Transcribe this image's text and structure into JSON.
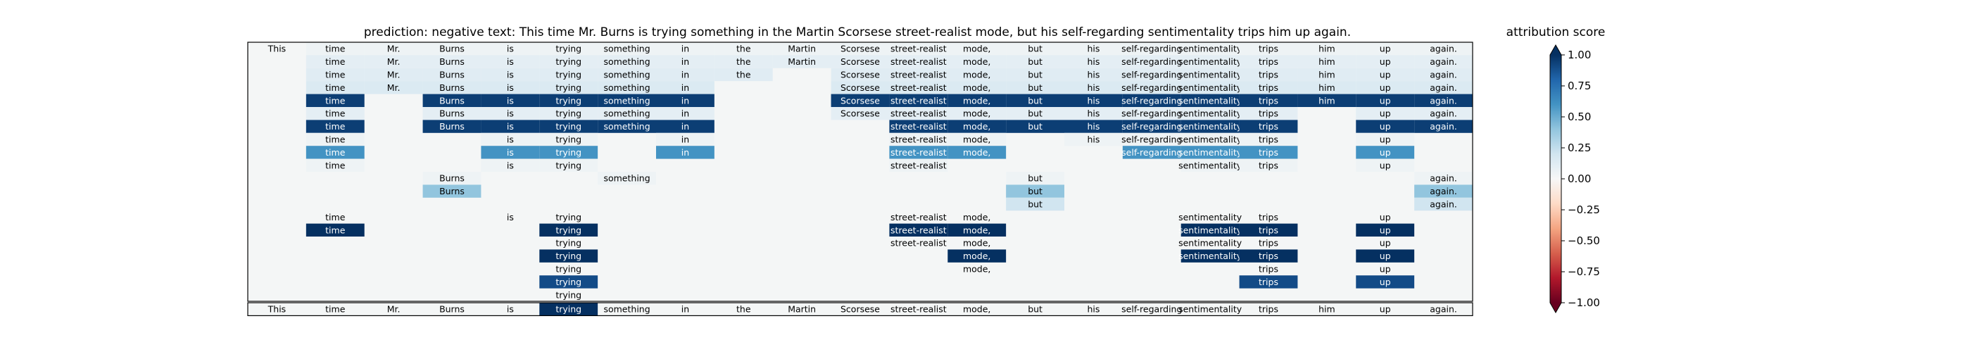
{
  "chart_data": {
    "type": "heatmap",
    "title": "prediction:  negative     text:  This time Mr. Burns is trying something in the Martin Scorsese street-realist mode, but his self-regarding sentimentality trips him up again.",
    "tokens": [
      "This",
      "time",
      "Mr.",
      "Burns",
      "is",
      "trying",
      "something",
      "in",
      "the",
      "Martin",
      "Scorsese",
      "street-realist",
      "mode,",
      "but",
      "his",
      "self-regarding",
      "sentimentality",
      "trips",
      "him",
      "up",
      "again."
    ],
    "rows": [
      [
        0.0,
        0.05,
        0.05,
        0.05,
        0.05,
        0.05,
        0.05,
        0.05,
        0.05,
        0.05,
        0.05,
        0.05,
        0.05,
        0.05,
        0.05,
        0.05,
        0.05,
        0.05,
        0.05,
        0.05,
        0.05
      ],
      [
        null,
        0.1,
        0.1,
        0.1,
        0.1,
        0.1,
        0.1,
        0.1,
        0.1,
        0.1,
        0.1,
        0.1,
        0.1,
        0.1,
        0.1,
        0.1,
        0.1,
        0.1,
        0.1,
        0.1,
        0.1
      ],
      [
        null,
        0.12,
        0.12,
        0.12,
        0.12,
        0.12,
        0.12,
        0.12,
        0.12,
        null,
        0.12,
        0.12,
        0.12,
        0.12,
        0.12,
        0.12,
        0.12,
        0.12,
        0.12,
        0.12,
        0.12
      ],
      [
        null,
        0.15,
        0.15,
        0.15,
        0.15,
        0.15,
        0.15,
        0.15,
        null,
        null,
        0.15,
        0.15,
        0.15,
        0.15,
        0.15,
        0.15,
        0.15,
        0.15,
        0.15,
        0.15,
        0.15
      ],
      [
        null,
        0.95,
        null,
        0.95,
        0.95,
        0.95,
        0.95,
        0.95,
        null,
        null,
        0.95,
        0.95,
        0.95,
        0.95,
        0.95,
        0.95,
        0.95,
        0.95,
        0.95,
        0.95,
        0.95
      ],
      [
        null,
        0.1,
        null,
        0.1,
        0.1,
        0.1,
        0.1,
        0.1,
        null,
        null,
        0.1,
        0.1,
        0.1,
        0.1,
        0.1,
        0.1,
        0.1,
        0.1,
        null,
        0.1,
        0.1
      ],
      [
        null,
        0.95,
        null,
        0.95,
        0.95,
        0.95,
        0.95,
        0.95,
        null,
        null,
        null,
        0.95,
        0.95,
        0.95,
        0.95,
        0.95,
        0.95,
        0.95,
        null,
        0.95,
        0.95
      ],
      [
        null,
        0.05,
        null,
        null,
        0.05,
        0.05,
        null,
        0.05,
        null,
        null,
        null,
        0.05,
        0.05,
        null,
        0.05,
        0.05,
        0.05,
        0.05,
        null,
        0.05,
        null
      ],
      [
        null,
        0.6,
        null,
        null,
        0.6,
        0.6,
        null,
        0.6,
        null,
        null,
        null,
        0.6,
        0.6,
        null,
        null,
        0.6,
        0.6,
        0.6,
        null,
        0.6,
        null
      ],
      [
        null,
        0.05,
        null,
        null,
        0.05,
        0.05,
        null,
        null,
        null,
        null,
        null,
        0.05,
        null,
        null,
        null,
        null,
        0.05,
        0.05,
        null,
        0.05,
        null
      ],
      [
        null,
        null,
        null,
        0.05,
        null,
        null,
        0.05,
        null,
        null,
        null,
        null,
        null,
        null,
        0.05,
        null,
        null,
        null,
        null,
        null,
        null,
        0.05
      ],
      [
        null,
        null,
        null,
        0.4,
        null,
        null,
        null,
        null,
        null,
        null,
        null,
        null,
        null,
        0.4,
        null,
        null,
        null,
        null,
        null,
        null,
        0.4
      ],
      [
        null,
        null,
        null,
        null,
        null,
        null,
        null,
        null,
        null,
        null,
        null,
        null,
        null,
        0.2,
        null,
        null,
        null,
        null,
        null,
        null,
        0.2
      ],
      [
        null,
        0.0,
        null,
        null,
        0.0,
        0.0,
        null,
        null,
        null,
        null,
        null,
        0.0,
        0.0,
        null,
        null,
        null,
        0.0,
        0.0,
        null,
        0.0,
        null
      ],
      [
        null,
        1.0,
        null,
        null,
        null,
        1.0,
        null,
        null,
        null,
        null,
        null,
        1.0,
        1.0,
        null,
        null,
        null,
        1.0,
        1.0,
        null,
        1.0,
        null
      ],
      [
        null,
        null,
        null,
        null,
        null,
        0.0,
        null,
        null,
        null,
        null,
        null,
        0.0,
        0.0,
        null,
        null,
        null,
        0.0,
        0.0,
        null,
        0.0,
        null
      ],
      [
        null,
        null,
        null,
        null,
        null,
        1.0,
        null,
        null,
        null,
        null,
        null,
        null,
        1.0,
        null,
        null,
        null,
        1.0,
        1.0,
        null,
        1.0,
        null
      ],
      [
        null,
        null,
        null,
        null,
        null,
        0.0,
        null,
        null,
        null,
        null,
        null,
        null,
        0.0,
        null,
        null,
        null,
        null,
        0.0,
        null,
        0.0,
        null
      ],
      [
        null,
        null,
        null,
        null,
        null,
        0.9,
        null,
        null,
        null,
        null,
        null,
        null,
        null,
        null,
        null,
        null,
        null,
        0.9,
        null,
        0.9,
        null
      ],
      [
        null,
        null,
        null,
        null,
        null,
        0.0,
        null,
        null,
        null,
        null,
        null,
        null,
        null,
        null,
        null,
        null,
        null,
        null,
        null,
        null,
        null
      ]
    ],
    "summary_row": [
      0.0,
      0.0,
      0.0,
      0.0,
      0.0,
      1.0,
      0.0,
      0.0,
      0.0,
      0.0,
      0.0,
      0.0,
      0.0,
      0.0,
      0.0,
      0.0,
      0.0,
      0.0,
      0.0,
      0.0,
      0.0
    ],
    "colorbar": {
      "label": "attribution score",
      "range": [
        -1.0,
        1.0
      ],
      "ticks": [
        "1.00",
        "0.75",
        "0.50",
        "0.25",
        "0.00",
        "−0.25",
        "−0.50",
        "−0.75",
        "−1.00"
      ],
      "tick_values": [
        1.0,
        0.75,
        0.5,
        0.25,
        0.0,
        -0.25,
        -0.5,
        -0.75,
        -1.0
      ]
    },
    "colormap": "RdBu",
    "colormap_stops": [
      "#67001f",
      "#b2182b",
      "#d6604d",
      "#f4a582",
      "#fddbc7",
      "#f7f7f7",
      "#d1e5f0",
      "#92c5de",
      "#4393c3",
      "#2166ac",
      "#053061"
    ],
    "background_color": "#f4f6f6"
  }
}
